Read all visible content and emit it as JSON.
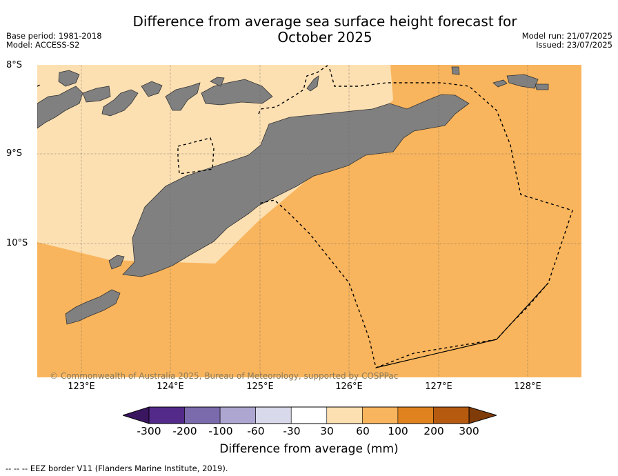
{
  "title_line1": "Difference from average sea surface height forecast for",
  "title_line2": "October 2025",
  "meta_left": {
    "base_period": "Base period: 1981-2018",
    "model": "Model: ACCESS-S2"
  },
  "meta_right": {
    "model_run": "Model run: 21/07/2025",
    "issued": "Issued: 23/07/2025"
  },
  "lat_labels": [
    "8°S",
    "9°S",
    "10°S"
  ],
  "lon_labels": [
    "123°E",
    "124°E",
    "125°E",
    "126°E",
    "127°E",
    "128°E"
  ],
  "copyright": "© Commonwealth of Australia 2025, Bureau of Meteorology, supported by COSPPac",
  "colorbar": {
    "ticks": [
      "-300",
      "-200",
      "-100",
      "-60",
      "-30",
      "30",
      "60",
      "100",
      "200",
      "300"
    ],
    "colors": [
      "#3a1560",
      "#532a8a",
      "#7b6aac",
      "#aca6d0",
      "#d8d9ea",
      "#ffffff",
      "#fde0b2",
      "#f9b55d",
      "#e0831e",
      "#b65a10",
      "#7f3b08"
    ],
    "title": "Difference from average (mm)"
  },
  "map_colors": {
    "light_fill": "#fde0b2",
    "orange_fill": "#f9b55d",
    "land": "#808080"
  },
  "footnote": "--  --  -- EEZ border V11 (Flanders Marine Institute, 2019)."
}
